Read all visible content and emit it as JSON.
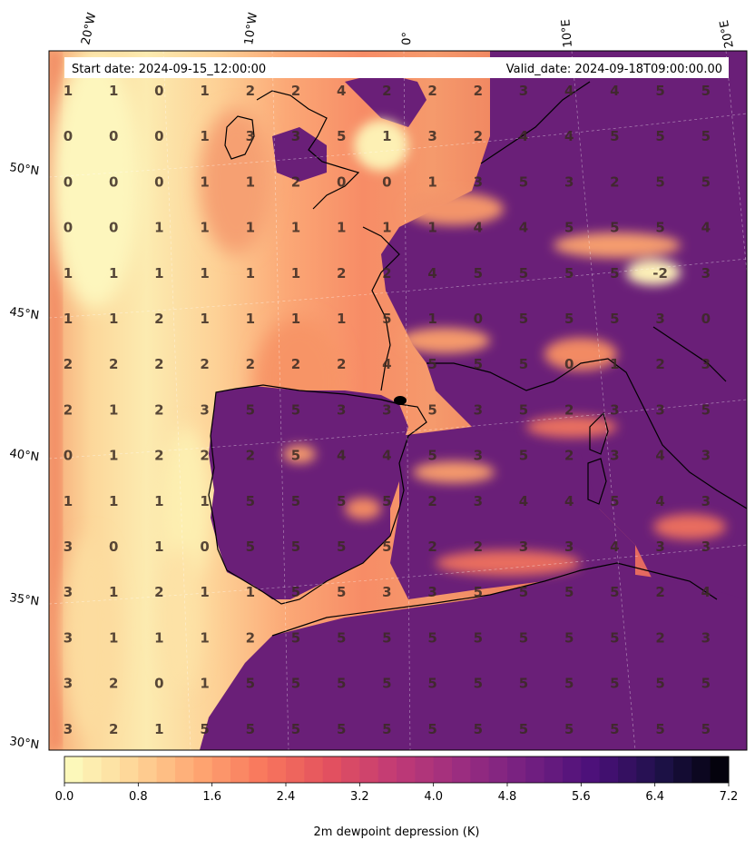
{
  "header": {
    "start_date": "Start date: 2024-09-15_12:00:00",
    "valid_date": "Valid_date: 2024-09-18T09:00:00.00"
  },
  "axes": {
    "lon_labels": [
      "20°W",
      "10°W",
      "0°",
      "10°E",
      "20°E"
    ],
    "lat_labels": [
      "50°N",
      "45°N",
      "40°N",
      "35°N",
      "30°N"
    ]
  },
  "colorbar": {
    "label": "2m dewpoint depression (K)",
    "ticks": [
      "0.0",
      "0.8",
      "1.6",
      "2.4",
      "3.2",
      "4.0",
      "4.8",
      "5.6",
      "6.4",
      "7.2"
    ],
    "range": [
      0.0,
      7.2
    ],
    "colors": [
      "#fcf3b4",
      "#fde3a3",
      "#fdc68e",
      "#fca674",
      "#f8835e",
      "#ea5e5e",
      "#d04a6b",
      "#b03a78",
      "#8f2d7c",
      "#6d1f7a",
      "#4b1371",
      "#2a0b4e",
      "#0f0620",
      "#000004"
    ]
  },
  "grid_values": [
    [
      "1",
      "1",
      "0",
      "1",
      "2",
      "2",
      "4",
      "2",
      "2",
      "2",
      "3",
      "4",
      "4",
      "5",
      "5"
    ],
    [
      "0",
      "0",
      "0",
      "1",
      "3",
      "3",
      "5",
      "1",
      "3",
      "2",
      "4",
      "4",
      "5",
      "5",
      "5"
    ],
    [
      "0",
      "0",
      "0",
      "1",
      "1",
      "2",
      "0",
      "0",
      "1",
      "3",
      "5",
      "3",
      "2",
      "5",
      "5"
    ],
    [
      "0",
      "0",
      "1",
      "1",
      "1",
      "1",
      "1",
      "1",
      "1",
      "4",
      "4",
      "5",
      "5",
      "5",
      "4"
    ],
    [
      "1",
      "1",
      "1",
      "1",
      "1",
      "1",
      "2",
      "2",
      "4",
      "5",
      "5",
      "5",
      "5",
      "-2",
      "3"
    ],
    [
      "1",
      "1",
      "2",
      "1",
      "1",
      "1",
      "1",
      "5",
      "1",
      "0",
      "5",
      "5",
      "5",
      "3",
      "0"
    ],
    [
      "2",
      "2",
      "2",
      "2",
      "2",
      "2",
      "2",
      "4",
      "5",
      "5",
      "5",
      "0",
      "1",
      "2",
      "3"
    ],
    [
      "2",
      "1",
      "2",
      "3",
      "5",
      "5",
      "3",
      "3",
      "5",
      "3",
      "5",
      "2",
      "3",
      "3",
      "5"
    ],
    [
      "0",
      "1",
      "2",
      "2",
      "2",
      "5",
      "4",
      "4",
      "5",
      "3",
      "5",
      "2",
      "3",
      "4",
      "3"
    ],
    [
      "1",
      "1",
      "1",
      "1",
      "5",
      "5",
      "5",
      "5",
      "2",
      "3",
      "4",
      "4",
      "5",
      "4",
      "3"
    ],
    [
      "3",
      "0",
      "1",
      "0",
      "5",
      "5",
      "5",
      "5",
      "2",
      "2",
      "3",
      "3",
      "4",
      "3",
      "3"
    ],
    [
      "3",
      "1",
      "2",
      "1",
      "1",
      "5",
      "5",
      "3",
      "3",
      "5",
      "5",
      "5",
      "5",
      "2",
      "4"
    ],
    [
      "3",
      "1",
      "1",
      "1",
      "2",
      "5",
      "5",
      "5",
      "5",
      "5",
      "5",
      "5",
      "5",
      "2",
      "3"
    ],
    [
      "3",
      "2",
      "0",
      "1",
      "5",
      "5",
      "5",
      "5",
      "5",
      "5",
      "5",
      "5",
      "5",
      "5",
      "5"
    ],
    [
      "3",
      "2",
      "1",
      "5",
      "5",
      "5",
      "5",
      "5",
      "5",
      "5",
      "5",
      "5",
      "5",
      "5",
      "5"
    ]
  ]
}
